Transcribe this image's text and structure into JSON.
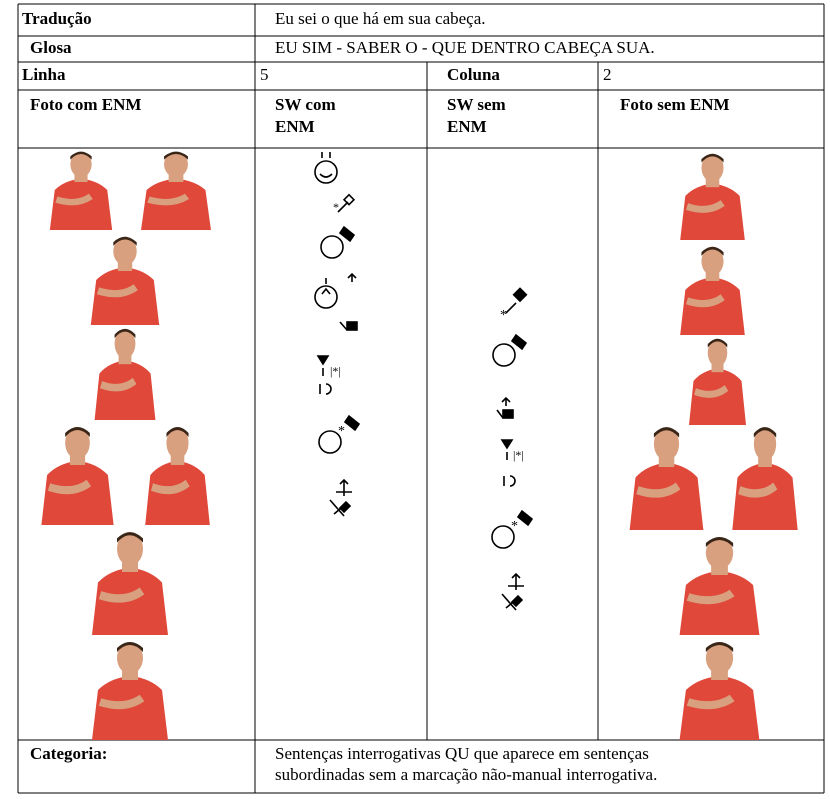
{
  "translation_label": "Tradução",
  "translation": "Eu sei o que há em sua cabeça.",
  "gloss_label": "Glosa",
  "gloss": "EU SIM - SABER O - QUE DENTRO CABEÇA SUA.",
  "row_label": "Linha",
  "row": "5",
  "column_label": "Coluna",
  "column": "2",
  "headers": [
    [
      "Foto com ENM"
    ],
    [
      "SW com",
      "ENM"
    ],
    [
      "SW sem",
      "ENM"
    ],
    [
      "Foto sem ENM"
    ]
  ],
  "category_label": "Categoria:",
  "category": [
    "Sentenças interrogativas QU que aparece em sentenças",
    "subordinadas sem a marcação não-manual interrogativa."
  ]
}
